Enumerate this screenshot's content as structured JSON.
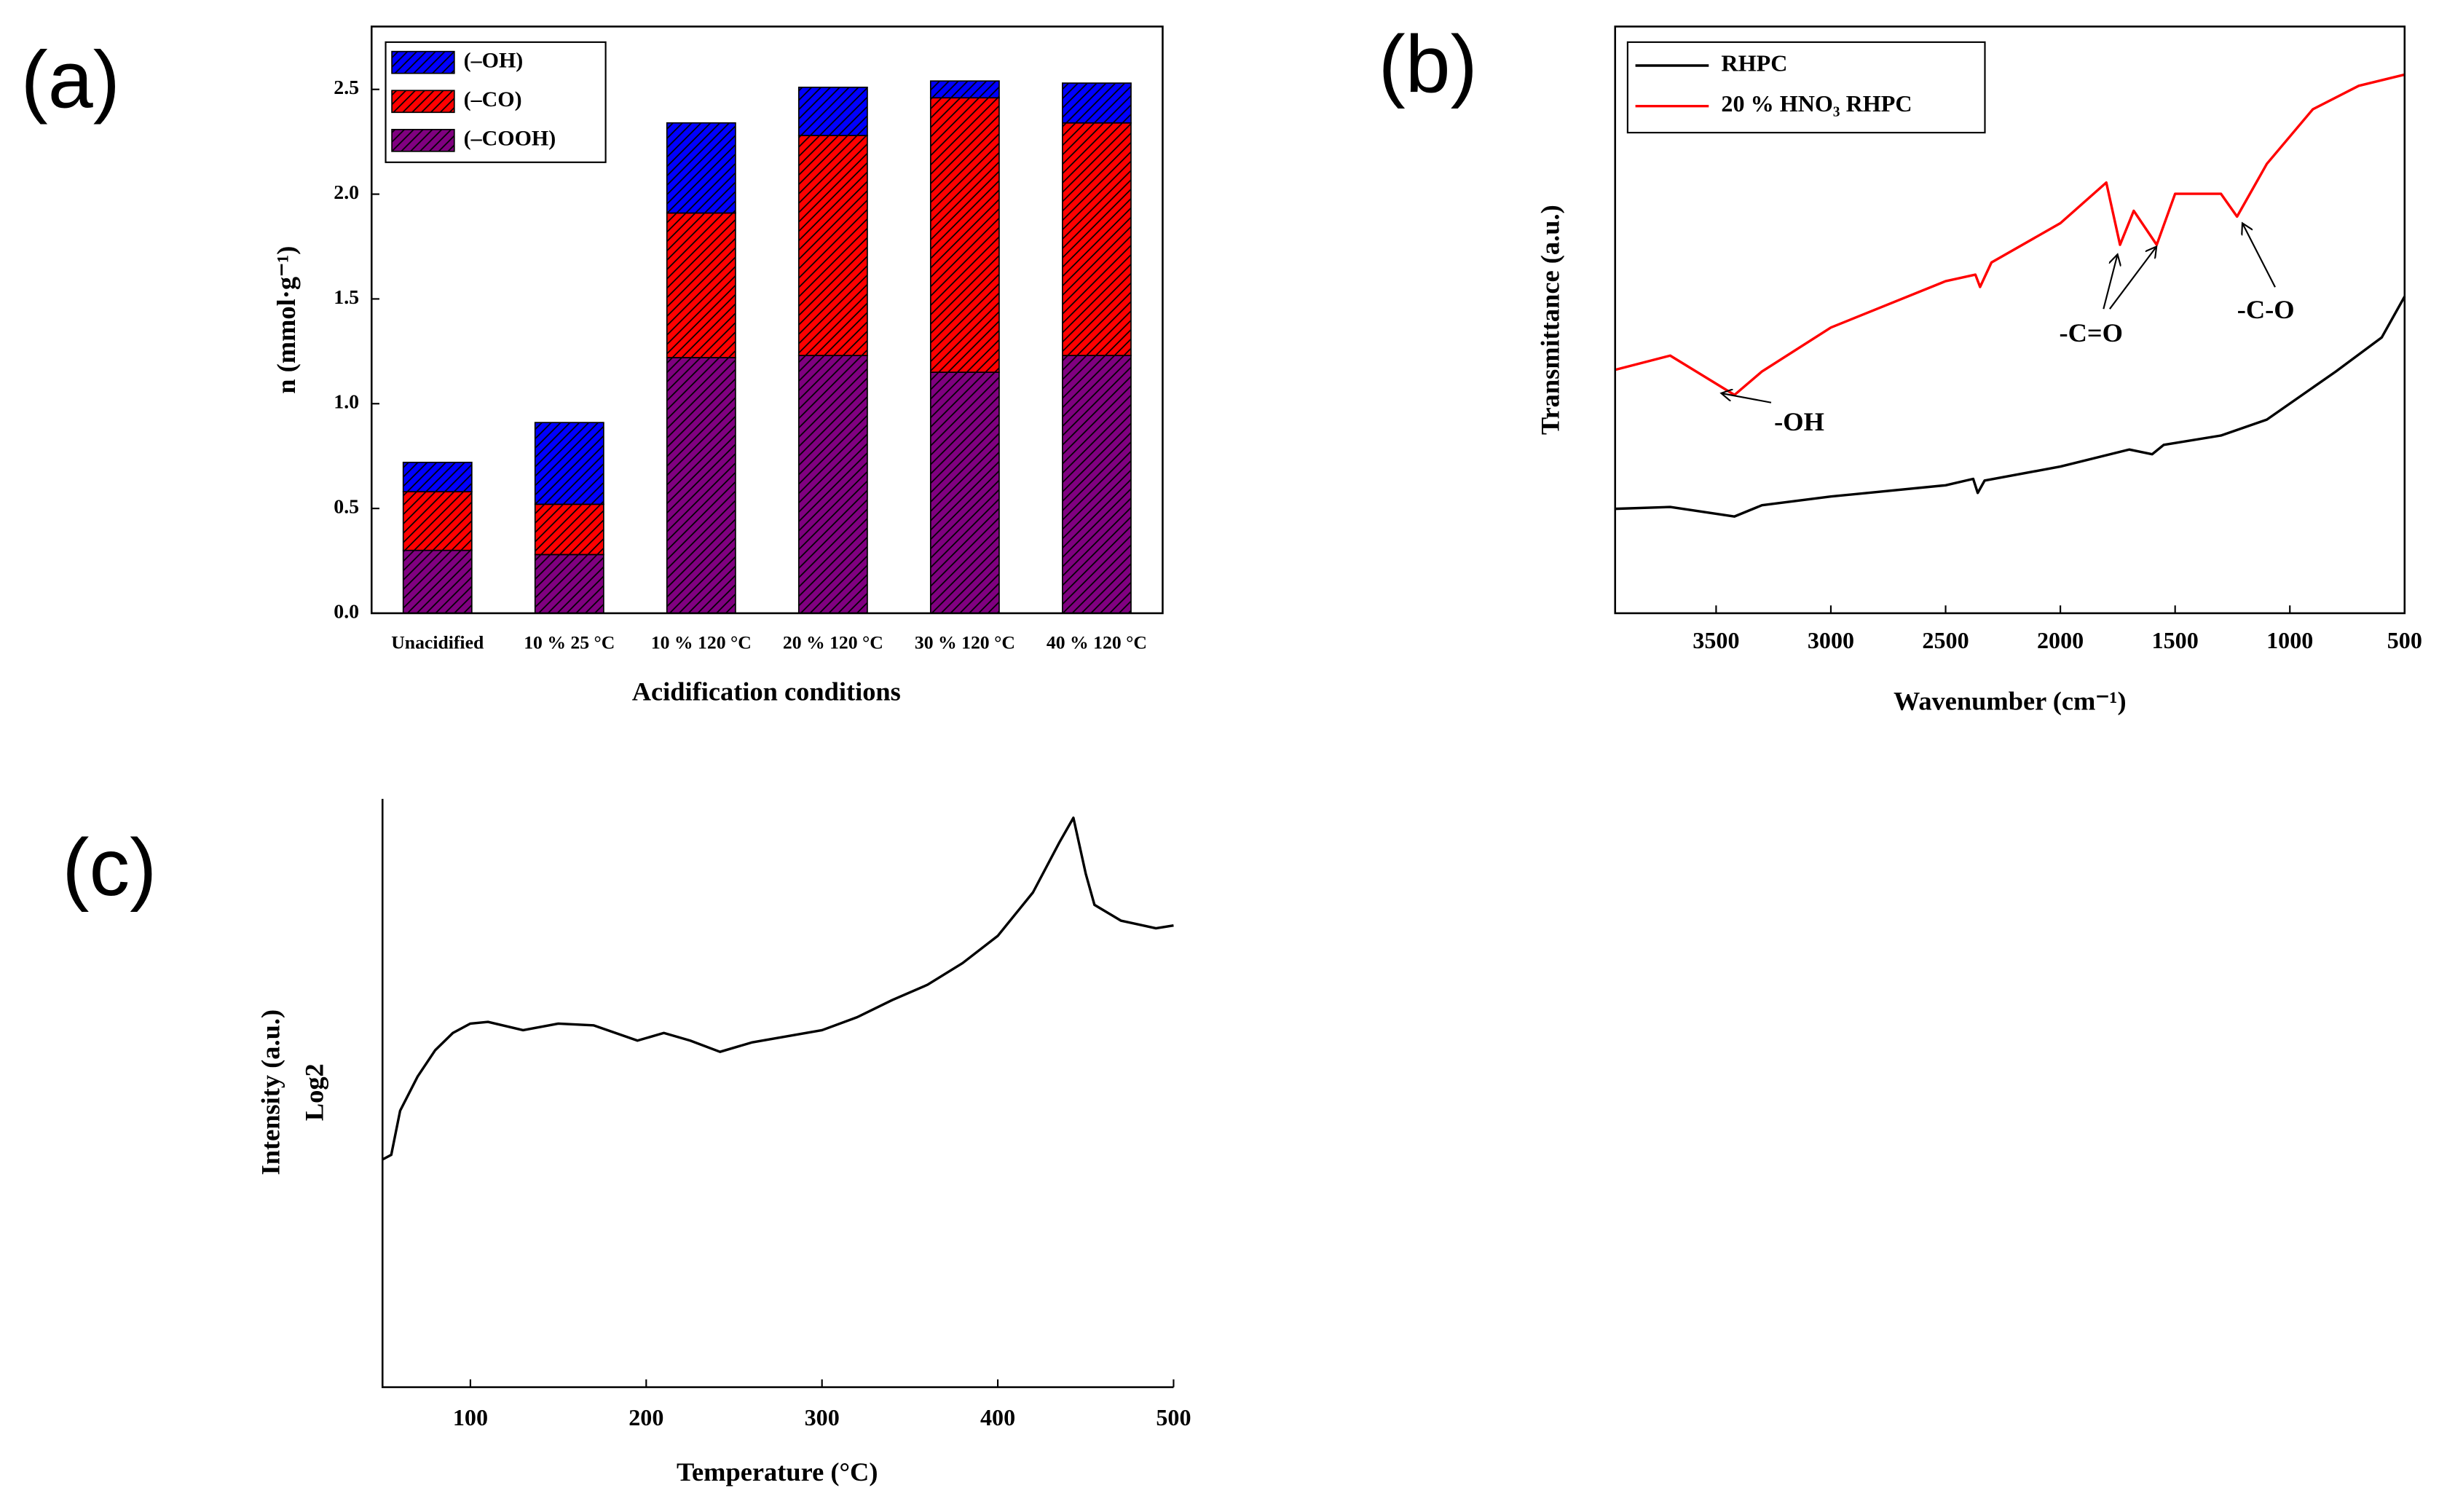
{
  "chart_data": [
    {
      "type": "bar",
      "panel_label": "(a)",
      "xlabel": "Acidification conditions",
      "ylabel": "n (mmol·g⁻¹)",
      "categories": [
        "Unacidified",
        "10 % 25 °C",
        "10 % 120 °C",
        "20 % 120 °C",
        "30 % 120 °C",
        "40 % 120 °C"
      ],
      "series": [
        {
          "name": "(–COOH)",
          "color": "#800080",
          "values": [
            0.3,
            0.28,
            1.22,
            1.23,
            1.15,
            1.23
          ]
        },
        {
          "name": "(–CO)",
          "color": "#ff0000",
          "values": [
            0.28,
            0.24,
            0.69,
            1.05,
            1.31,
            1.11
          ]
        },
        {
          "name": "(–OH)",
          "color": "#0000ff",
          "values": [
            0.14,
            0.39,
            0.43,
            0.23,
            0.08,
            0.19
          ]
        }
      ],
      "ylim": [
        0,
        2.8
      ],
      "yticks": [
        {
          "value": 0,
          "label": "0.0"
        },
        {
          "value": 0.5,
          "label": "0.5"
        },
        {
          "value": 1,
          "label": "1.0"
        },
        {
          "value": 1.5,
          "label": "1.5"
        },
        {
          "value": 2,
          "label": "2.0"
        },
        {
          "value": 2.5,
          "label": "2.5"
        }
      ],
      "legend": "upper left",
      "hatch": true
    },
    {
      "type": "line",
      "panel_label": "(b)",
      "xlabel": "Wavenumber (cm⁻¹)",
      "ylabel": "Transmittance (a.u.)",
      "series": [
        {
          "name": "RHPC",
          "color": "#000000",
          "x": [
            3940,
            3700,
            3420,
            3300,
            3000,
            2500,
            2380,
            2360,
            2330,
            2000,
            1700,
            1600,
            1550,
            1300,
            1100,
            800,
            600,
            500
          ],
          "values": [
            17.8,
            18.1,
            16.5,
            18.4,
            19.9,
            21.8,
            22.9,
            20.5,
            22.6,
            25,
            27.9,
            27.1,
            28.7,
            30.3,
            33,
            41.2,
            47,
            54
          ]
        },
        {
          "name": "20 % HNO₃ RHPC",
          "color": "#ff0000",
          "x": [
            3940,
            3700,
            3420,
            3300,
            3000,
            2500,
            2370,
            2350,
            2300,
            2000,
            1800,
            1740,
            1680,
            1580,
            1500,
            1300,
            1230,
            1100,
            900,
            700,
            500
          ],
          "values": [
            41.5,
            43.9,
            37.2,
            41.2,
            48.7,
            56.6,
            57.7,
            55.6,
            59.8,
            66.5,
            73.4,
            62.8,
            68.6,
            62.8,
            71.5,
            71.5,
            67.6,
            76.6,
            85.9,
            89.9,
            91.8
          ]
        }
      ],
      "xlim": [
        3940,
        500
      ],
      "xticks": [
        3500,
        3000,
        2500,
        2000,
        1500,
        1000,
        500
      ],
      "ylim": [
        0,
        100
      ],
      "legend": "upper left",
      "annotations": [
        "-OH",
        "-C=O",
        "-C-O"
      ]
    },
    {
      "type": "line",
      "panel_label": "(c)",
      "xlabel": "Temperature (°C)",
      "ylabel": "Intensity (a.u.)",
      "ylabel_line2": "Log2",
      "color": "#000000",
      "x": [
        50,
        55,
        60,
        70,
        80,
        90,
        100,
        110,
        130,
        150,
        170,
        195,
        210,
        225,
        242,
        260,
        300,
        320,
        340,
        360,
        380,
        400,
        420,
        435,
        443,
        450,
        455,
        470,
        490,
        500
      ],
      "values": [
        38.7,
        39.5,
        47,
        52.8,
        57.3,
        60.2,
        61.8,
        62.1,
        60.7,
        61.8,
        61.5,
        58.9,
        60.2,
        58.9,
        57,
        58.6,
        60.7,
        62.9,
        65.8,
        68.4,
        72.1,
        76.7,
        84.1,
        92.6,
        96.8,
        87.3,
        82,
        79.3,
        78,
        78.5
      ],
      "xlim": [
        50,
        500
      ],
      "xticks": [
        100,
        200,
        300,
        400,
        500
      ],
      "ylim": [
        0,
        100
      ]
    }
  ]
}
